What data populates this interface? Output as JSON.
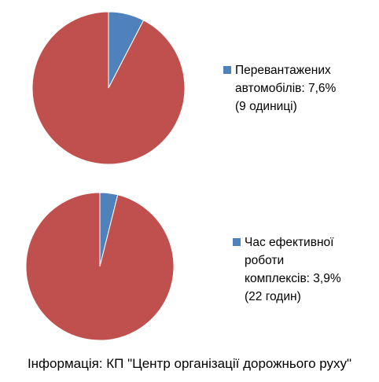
{
  "chart_data": [
    {
      "type": "pie",
      "title": "",
      "slices": [
        {
          "label": "Перевантажених автомобілів: 7,6% (9 одиниці)",
          "value": 7.6,
          "color": "#4f81bd"
        },
        {
          "label": "",
          "value": 92.4,
          "color": "#c0504d"
        }
      ],
      "legend": {
        "placement": "right",
        "text": "Перевантажених\nавтомобілів: 7,6%\n(9 одиниці)"
      }
    },
    {
      "type": "pie",
      "title": "",
      "slices": [
        {
          "label": "Час ефективної роботи комплексів: 3,9% (22 годин)",
          "value": 3.9,
          "color": "#4f81bd"
        },
        {
          "label": "",
          "value": 96.1,
          "color": "#c0504d"
        }
      ],
      "legend": {
        "placement": "right",
        "text": "Час ефективної\nроботи\nкомплексів: 3,9%\n(22 годин)"
      }
    }
  ],
  "source_note": "Інформація: КП \"Центр організації дорожнього руху\""
}
